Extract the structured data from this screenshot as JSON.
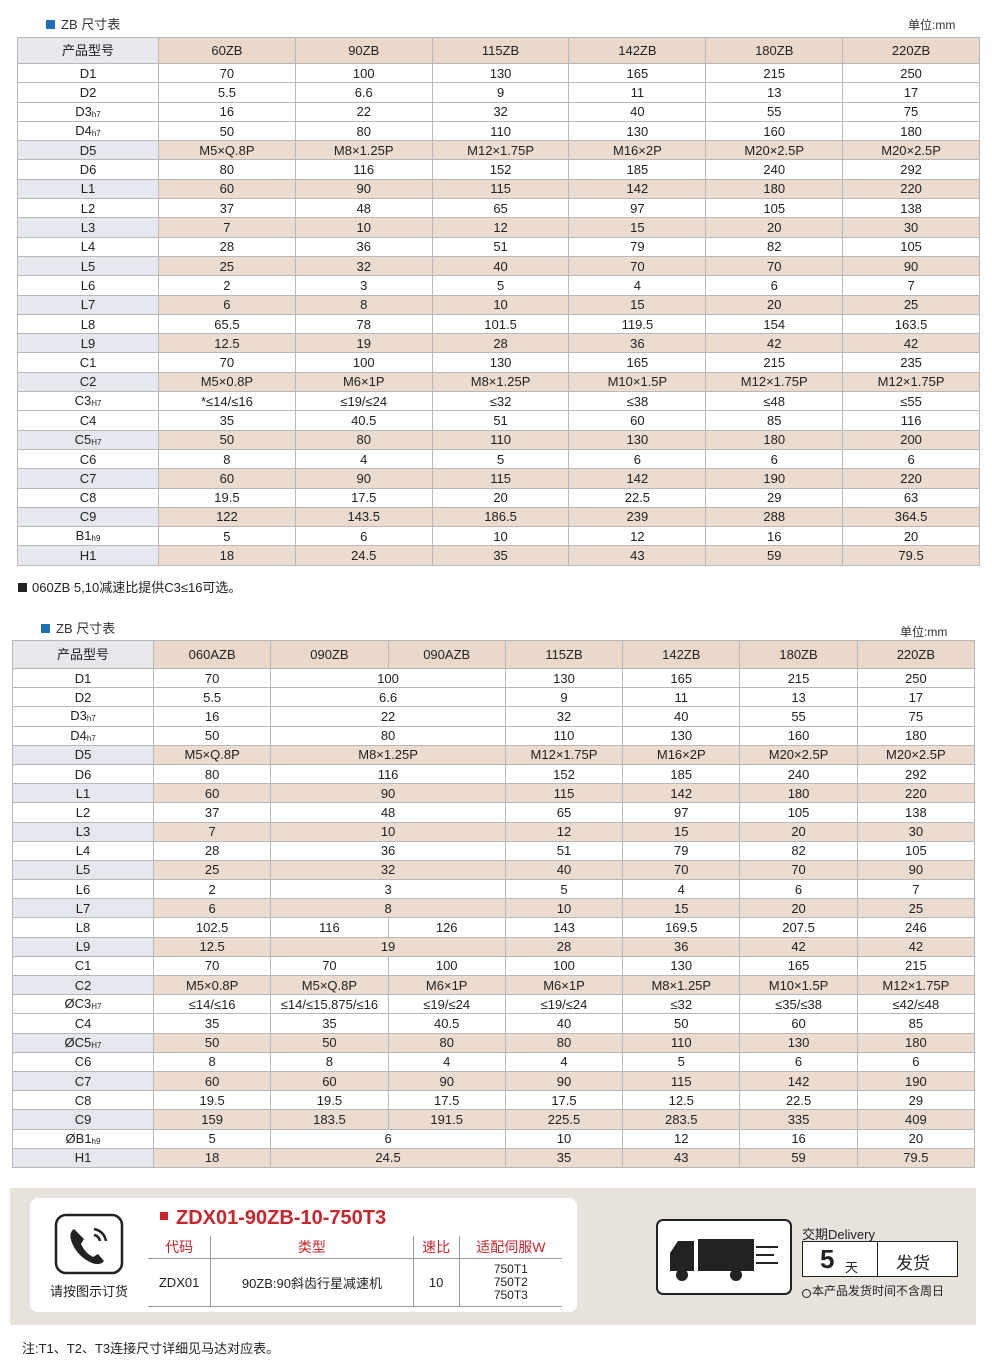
{
  "table1": {
    "title": "ZB 尺寸表",
    "unit": "单位:mm",
    "header": [
      "产品型号",
      "60ZB",
      "90ZB",
      "115ZB",
      "142ZB",
      "180ZB",
      "220ZB"
    ],
    "rows": [
      {
        "name": "D1",
        "cells": [
          "70",
          "100",
          "130",
          "165",
          "215",
          "250"
        ]
      },
      {
        "name": "D2",
        "cells": [
          "5.5",
          "6.6",
          "9",
          "11",
          "13",
          "17"
        ]
      },
      {
        "name": "D3",
        "sub": "h7",
        "cells": [
          "16",
          "22",
          "32",
          "40",
          "55",
          "75"
        ]
      },
      {
        "name": "D4",
        "sub": "h7",
        "cells": [
          "50",
          "80",
          "110",
          "130",
          "160",
          "180"
        ]
      },
      {
        "name": "D5",
        "cells": [
          "M5×Q.8P",
          "M8×1.25P",
          "M12×1.75P",
          "M16×2P",
          "M20×2.5P",
          "M20×2.5P"
        ]
      },
      {
        "name": "D6",
        "cells": [
          "80",
          "116",
          "152",
          "185",
          "240",
          "292"
        ]
      },
      {
        "name": "L1",
        "cells": [
          "60",
          "90",
          "115",
          "142",
          "180",
          "220"
        ]
      },
      {
        "name": "L2",
        "cells": [
          "37",
          "48",
          "65",
          "97",
          "105",
          "138"
        ]
      },
      {
        "name": "L3",
        "cells": [
          "7",
          "10",
          "12",
          "15",
          "20",
          "30"
        ]
      },
      {
        "name": "L4",
        "cells": [
          "28",
          "36",
          "51",
          "79",
          "82",
          "105"
        ]
      },
      {
        "name": "L5",
        "cells": [
          "25",
          "32",
          "40",
          "70",
          "70",
          "90"
        ]
      },
      {
        "name": "L6",
        "cells": [
          "2",
          "3",
          "5",
          "4",
          "6",
          "7"
        ]
      },
      {
        "name": "L7",
        "cells": [
          "6",
          "8",
          "10",
          "15",
          "20",
          "25"
        ]
      },
      {
        "name": "L8",
        "cells": [
          "65.5",
          "78",
          "101.5",
          "119.5",
          "154",
          "163.5"
        ]
      },
      {
        "name": "L9",
        "cells": [
          "12.5",
          "19",
          "28",
          "36",
          "42",
          "42"
        ]
      },
      {
        "name": "C1",
        "cells": [
          "70",
          "100",
          "130",
          "165",
          "215",
          "235"
        ]
      },
      {
        "name": "C2",
        "cells": [
          "M5×0.8P",
          "M6×1P",
          "M8×1.25P",
          "M10×1.5P",
          "M12×1.75P",
          "M12×1.75P"
        ]
      },
      {
        "name": "C3",
        "sub": "H7",
        "cells": [
          "*≤14/≤16",
          "≤19/≤24",
          "≤32",
          "≤38",
          "≤48",
          "≤55"
        ]
      },
      {
        "name": "C4",
        "cells": [
          "35",
          "40.5",
          "51",
          "60",
          "85",
          "116"
        ]
      },
      {
        "name": "C5",
        "sub": "H7",
        "cells": [
          "50",
          "80",
          "110",
          "130",
          "180",
          "200"
        ]
      },
      {
        "name": "C6",
        "cells": [
          "8",
          "4",
          "5",
          "6",
          "6",
          "6"
        ]
      },
      {
        "name": "C7",
        "cells": [
          "60",
          "90",
          "115",
          "142",
          "190",
          "220"
        ]
      },
      {
        "name": "C8",
        "cells": [
          "19.5",
          "17.5",
          "20",
          "22.5",
          "29",
          "63"
        ]
      },
      {
        "name": "C9",
        "cells": [
          "122",
          "143.5",
          "186.5",
          "239",
          "288",
          "364.5"
        ]
      },
      {
        "name": "B1",
        "sub": "h9",
        "cells": [
          "5",
          "6",
          "10",
          "12",
          "16",
          "20"
        ]
      },
      {
        "name": "H1",
        "cells": [
          "18",
          "24.5",
          "35",
          "43",
          "59",
          "79.5"
        ]
      }
    ]
  },
  "note1": "060ZB  5,10减速比提供C3≤16可选。",
  "table2": {
    "title": "ZB 尺寸表",
    "unit": "单位:mm",
    "header": [
      "产品型号",
      "060AZB",
      "090ZB",
      "090AZB",
      "115ZB",
      "142ZB",
      "180ZB",
      "220ZB"
    ],
    "rows": [
      {
        "name": "D1",
        "cells": [
          "70",
          {
            "text": "100",
            "span": 2
          },
          "130",
          "165",
          "215",
          "250"
        ]
      },
      {
        "name": "D2",
        "cells": [
          "5.5",
          {
            "text": "6.6",
            "span": 2
          },
          "9",
          "11",
          "13",
          "17"
        ]
      },
      {
        "name": "D3",
        "sub": "h7",
        "cells": [
          "16",
          {
            "text": "22",
            "span": 2
          },
          "32",
          "40",
          "55",
          "75"
        ]
      },
      {
        "name": "D4",
        "sub": "h7",
        "cells": [
          "50",
          {
            "text": "80",
            "span": 2
          },
          "110",
          "130",
          "160",
          "180"
        ]
      },
      {
        "name": "D5",
        "cells": [
          "M5×Q.8P",
          {
            "text": "M8×1.25P",
            "span": 2
          },
          "M12×1.75P",
          "M16×2P",
          "M20×2.5P",
          "M20×2.5P"
        ]
      },
      {
        "name": "D6",
        "cells": [
          "80",
          {
            "text": "116",
            "span": 2
          },
          "152",
          "185",
          "240",
          "292"
        ]
      },
      {
        "name": "L1",
        "cells": [
          "60",
          {
            "text": "90",
            "span": 2
          },
          "115",
          "142",
          "180",
          "220"
        ]
      },
      {
        "name": "L2",
        "cells": [
          "37",
          {
            "text": "48",
            "span": 2
          },
          "65",
          "97",
          "105",
          "138"
        ]
      },
      {
        "name": "L3",
        "cells": [
          "7",
          {
            "text": "10",
            "span": 2
          },
          "12",
          "15",
          "20",
          "30"
        ]
      },
      {
        "name": "L4",
        "cells": [
          "28",
          {
            "text": "36",
            "span": 2
          },
          "51",
          "79",
          "82",
          "105"
        ]
      },
      {
        "name": "L5",
        "cells": [
          "25",
          {
            "text": "32",
            "span": 2
          },
          "40",
          "70",
          "70",
          "90"
        ]
      },
      {
        "name": "L6",
        "cells": [
          "2",
          {
            "text": "3",
            "span": 2
          },
          "5",
          "4",
          "6",
          "7"
        ]
      },
      {
        "name": "L7",
        "cells": [
          "6",
          {
            "text": "8",
            "span": 2
          },
          "10",
          "15",
          "20",
          "25"
        ]
      },
      {
        "name": "L8",
        "cells": [
          "102.5",
          "116",
          "126",
          "143",
          "169.5",
          "207.5",
          "246"
        ]
      },
      {
        "name": "L9",
        "cells": [
          "12.5",
          {
            "text": "19",
            "span": 2
          },
          "28",
          "36",
          "42",
          "42"
        ]
      },
      {
        "name": "C1",
        "cells": [
          "70",
          "70",
          "100",
          "100",
          "130",
          "165",
          "215"
        ]
      },
      {
        "name": "C2",
        "cells": [
          "M5×0.8P",
          "M5×Q.8P",
          "M6×1P",
          "M6×1P",
          "M8×1.25P",
          "M10×1.5P",
          "M12×1.75P"
        ]
      },
      {
        "name": "ØC3",
        "sub": "H7",
        "cells": [
          "≤14/≤16",
          "≤14/≤15.875/≤16",
          "≤19/≤24",
          "≤19/≤24",
          "≤32",
          "≤35/≤38",
          "≤42/≤48"
        ]
      },
      {
        "name": "C4",
        "cells": [
          "35",
          "35",
          "40.5",
          "40",
          "50",
          "60",
          "85"
        ]
      },
      {
        "name": "ØC5",
        "sub": "H7",
        "cells": [
          "50",
          "50",
          "80",
          "80",
          "110",
          "130",
          "180"
        ]
      },
      {
        "name": "C6",
        "cells": [
          "8",
          "8",
          "4",
          "4",
          "5",
          "6",
          "6"
        ]
      },
      {
        "name": "C7",
        "cells": [
          "60",
          "60",
          "90",
          "90",
          "115",
          "142",
          "190"
        ]
      },
      {
        "name": "C8",
        "cells": [
          "19.5",
          "19.5",
          "17.5",
          "17.5",
          "12.5",
          "22.5",
          "29"
        ]
      },
      {
        "name": "C9",
        "cells": [
          "159",
          "183.5",
          "191.5",
          "225.5",
          "283.5",
          "335",
          "409"
        ]
      },
      {
        "name": "ØB1",
        "sub": "h9",
        "cells": [
          "5",
          {
            "text": "6",
            "span": 2
          },
          "10",
          "12",
          "16",
          "20"
        ]
      },
      {
        "name": "H1",
        "cells": [
          "18",
          {
            "text": "24.5",
            "span": 2
          },
          "35",
          "43",
          "59",
          "79.5"
        ]
      }
    ]
  },
  "order": {
    "hint": "请按图示订货",
    "model": "ZDX01-90ZB-10-750T3",
    "header": [
      "代码",
      "类型",
      "速比",
      "适配伺服W"
    ],
    "row": [
      "ZDX01",
      "90ZB:90斜齿行星减速机",
      "10",
      [
        "750T1",
        "750T2",
        "750T3"
      ]
    ]
  },
  "delivery": {
    "label": "交期Delivery",
    "days": "5",
    "unit": "天",
    "action": "发货",
    "note": "本产品发货时间不含周日"
  },
  "footnote": "注:T1、T2、T3连接尺寸详细见马达对应表。"
}
